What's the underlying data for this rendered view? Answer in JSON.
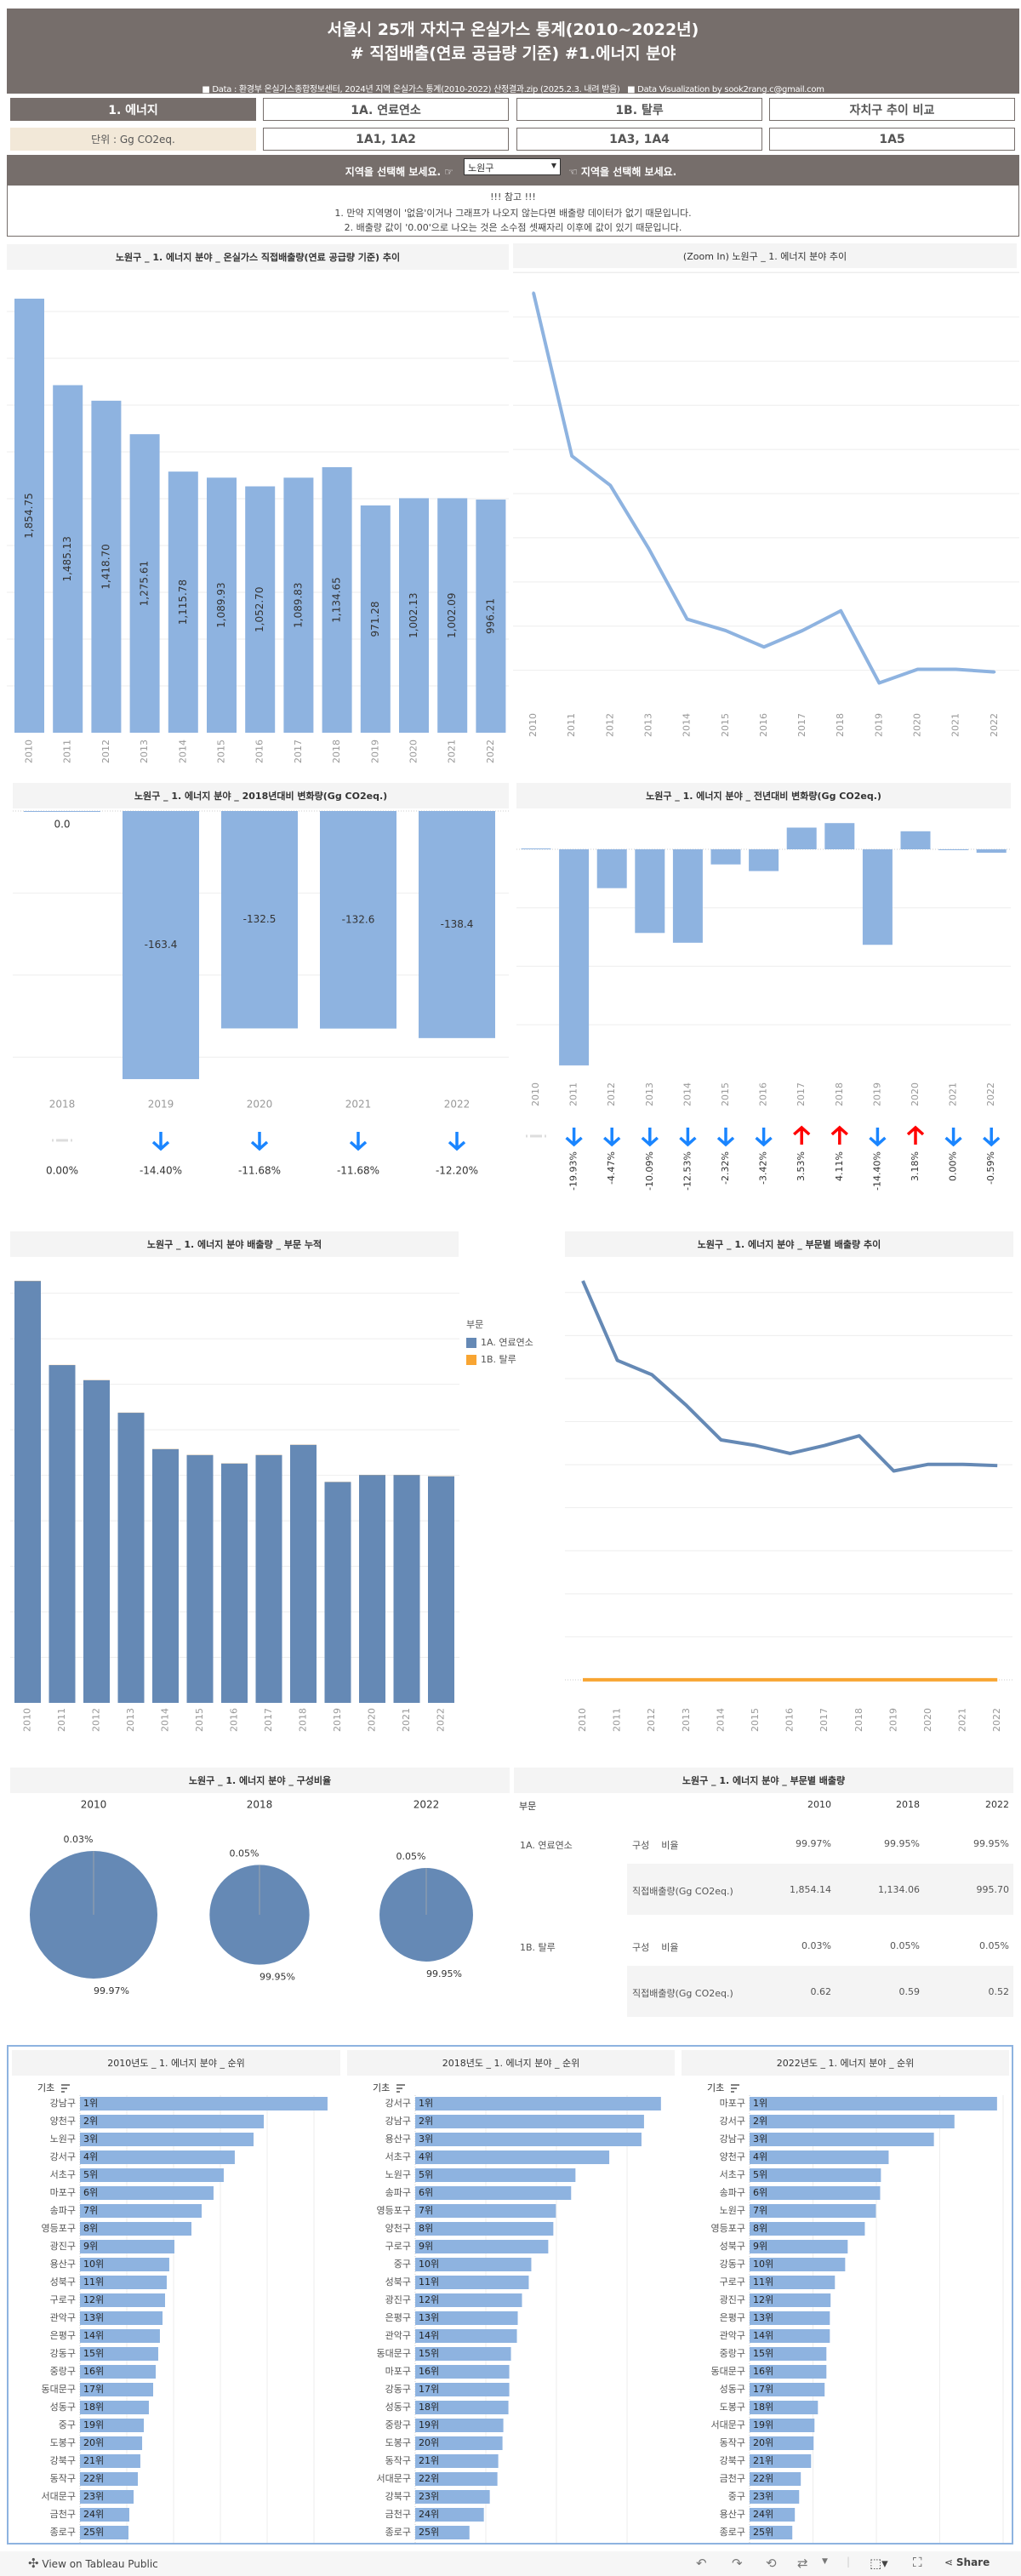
{
  "header": {
    "title_line1": "서울시 25개 자치구 온실가스 통계(2010~2022년)",
    "title_line2": "# 직접배출(연료 공급량 기준)   #1.에너지 분야",
    "source": "■ Data : 환경부 온실가스종합정보센터, 2024년 지역 온실가스 통계(2010-2022) 산정결과.zip   (2025.2.3. 내려 받음)",
    "credit": "■ Data Visualization by sook2rang.c@gmail.com"
  },
  "tabs": [
    "1. 에너지",
    "1A. 연료연소",
    "1B. 탈루",
    "자치구 추이 비교"
  ],
  "subtabs": [
    "단위 : Gg CO2eq.",
    "1A1, 1A2",
    "1A3, 1A4",
    "1A5"
  ],
  "selector": {
    "prompt_left": "지역을 선택해 보세요. ☞",
    "value": "노원구",
    "prompt_right": "☜ 지역을 선택해 보세요."
  },
  "note": {
    "title": "!!! 참고 !!!",
    "lines": [
      "1. 만약 지역명이 '없음'이거나 그래프가 나오지 않는다면 배출량 데이터가 없기 때문입니다.",
      "2. 배출량 값이 '0.00'으로 나오는 것은 소수점 셋째자리 이후에 값이 있기 때문입니다."
    ]
  },
  "colors": {
    "header": "#766e6b",
    "bar_light": "#8eb3e0",
    "series_1A": "#6589b5",
    "series_1B": "#f8a532",
    "arrow_down": "#1a85ff",
    "arrow_up": "#ff0000"
  },
  "footer": {
    "tableau_link": "View on Tableau Public",
    "share": "Share"
  },
  "chart_data": [
    {
      "type": "bar",
      "title": "노원구 _ 1. 에너지 분야 _ 온실가스 직접배출량(연료 공급량 기준) 추이",
      "categories": [
        "2010",
        "2011",
        "2012",
        "2013",
        "2014",
        "2015",
        "2016",
        "2017",
        "2018",
        "2019",
        "2020",
        "2021",
        "2022"
      ],
      "values": [
        1854.75,
        1485.13,
        1418.7,
        1275.61,
        1115.78,
        1089.93,
        1052.7,
        1089.83,
        1134.65,
        971.28,
        1002.13,
        1002.09,
        996.21
      ],
      "labels": [
        "1,854.75",
        "1,485.13",
        "1,418.70",
        "1,275.61",
        "1,115.78",
        "1,089.93",
        "1,052.70",
        "1,089.83",
        "1,134.65",
        "971.28",
        "1,002.13",
        "1,002.09",
        "996.21"
      ],
      "ylim": [
        0,
        2000
      ],
      "grid": true
    },
    {
      "type": "line",
      "title": "(Zoom In) 노원구 _ 1. 에너지 분야 추이",
      "categories": [
        "2010",
        "2011",
        "2012",
        "2013",
        "2014",
        "2015",
        "2016",
        "2017",
        "2018",
        "2019",
        "2020",
        "2021",
        "2022"
      ],
      "values": [
        1854.75,
        1485.13,
        1418.7,
        1275.61,
        1115.78,
        1089.93,
        1052.7,
        1089.83,
        1134.65,
        971.28,
        1002.13,
        1002.09,
        996.21
      ],
      "ylim": [
        930,
        1900
      ],
      "grid": true
    },
    {
      "type": "bar",
      "title": "노원구 _ 1. 에너지 분야 _ 2018년대비 변화량(Gg CO2eq.)",
      "categories": [
        "2018",
        "2019",
        "2020",
        "2021",
        "2022"
      ],
      "values": [
        0.0,
        -163.4,
        -132.5,
        -132.6,
        -138.4
      ],
      "labels": [
        "0.0",
        "-163.4",
        "-132.5",
        "-132.6",
        "-138.4"
      ],
      "pct": [
        "0.00%",
        "-14.40%",
        "-11.68%",
        "-11.68%",
        "-12.20%"
      ],
      "direction": [
        "none",
        "down",
        "down",
        "down",
        "down"
      ],
      "ylim": [
        -165,
        0
      ],
      "grid": true
    },
    {
      "type": "bar",
      "title": "노원구 _ 1. 에너지 분야 _ 전년대비 변화량(Gg CO2eq.)",
      "categories": [
        "2010",
        "2011",
        "2012",
        "2013",
        "2014",
        "2015",
        "2016",
        "2017",
        "2018",
        "2019",
        "2020",
        "2021",
        "2022"
      ],
      "values": [
        0,
        -369.62,
        -66.43,
        -143.09,
        -159.83,
        -25.85,
        -37.23,
        37.13,
        44.82,
        -163.37,
        30.85,
        -0.04,
        -5.88
      ],
      "pct": [
        "",
        "-19.93%",
        "-4.47%",
        "-10.09%",
        "-12.53%",
        "-2.32%",
        "-3.42%",
        "3.53%",
        "4.11%",
        "-14.40%",
        "3.18%",
        "0.00%",
        "-0.59%"
      ],
      "direction": [
        "none",
        "down",
        "down",
        "down",
        "down",
        "down",
        "down",
        "up",
        "up",
        "down",
        "up",
        "down",
        "down"
      ],
      "ylim": [
        -380,
        70
      ],
      "grid": true
    },
    {
      "type": "bar",
      "stacked": true,
      "title": "노원구 _ 1. 에너지 분야 배출량 _ 부문 누적",
      "categories": [
        "2010",
        "2011",
        "2012",
        "2013",
        "2014",
        "2015",
        "2016",
        "2017",
        "2018",
        "2019",
        "2020",
        "2021",
        "2022"
      ],
      "legend_title": "부문",
      "legend": "right",
      "series": [
        {
          "name": "1A. 연료연소",
          "color": "#6589b5",
          "values": [
            1854.14,
            1484.5,
            1418.1,
            1275.0,
            1115.2,
            1089.3,
            1052.1,
            1089.2,
            1134.06,
            970.7,
            1001.6,
            1001.6,
            995.7
          ]
        },
        {
          "name": "1B. 탈루",
          "color": "#f8a532",
          "values": [
            0.62,
            0.6,
            0.6,
            0.6,
            0.6,
            0.6,
            0.6,
            0.6,
            0.59,
            0.55,
            0.53,
            0.52,
            0.52
          ]
        }
      ],
      "ylim": [
        0,
        2000
      ],
      "grid": true
    },
    {
      "type": "line",
      "title": "노원구 _ 1. 에너지 분야 _ 부문별 배출량 추이",
      "categories": [
        "2010",
        "2011",
        "2012",
        "2013",
        "2014",
        "2015",
        "2016",
        "2017",
        "2018",
        "2019",
        "2020",
        "2021",
        "2022"
      ],
      "series": [
        {
          "name": "1A. 연료연소",
          "color": "#6589b5",
          "values": [
            1854.14,
            1484.5,
            1418.1,
            1275.0,
            1115.2,
            1089.3,
            1052.1,
            1089.2,
            1134.06,
            970.7,
            1001.6,
            1001.6,
            995.7
          ]
        },
        {
          "name": "1B. 탈루",
          "color": "#f8a532",
          "values": [
            0.62,
            0.6,
            0.6,
            0.6,
            0.6,
            0.6,
            0.6,
            0.6,
            0.59,
            0.55,
            0.53,
            0.52,
            0.52
          ]
        }
      ],
      "ylim": [
        0,
        1900
      ],
      "grid": true
    },
    {
      "type": "pie",
      "title": "노원구 _ 1. 에너지 분야 _ 구성비율",
      "pies": [
        {
          "year": "2010",
          "total": 1854.75,
          "slices": [
            {
              "name": "1A. 연료연소",
              "value": 99.97,
              "label": "99.97%"
            },
            {
              "name": "1B. 탈루",
              "value": 0.03,
              "label": "0.03%"
            }
          ]
        },
        {
          "year": "2018",
          "total": 1134.65,
          "slices": [
            {
              "name": "1A. 연료연소",
              "value": 99.95,
              "label": "99.95%"
            },
            {
              "name": "1B. 탈루",
              "value": 0.05,
              "label": "0.05%"
            }
          ]
        },
        {
          "year": "2022",
          "total": 996.21,
          "slices": [
            {
              "name": "1A. 연료연소",
              "value": 99.95,
              "label": "99.95%"
            },
            {
              "name": "1B. 탈루",
              "value": 0.05,
              "label": "0.05%"
            }
          ]
        }
      ]
    },
    {
      "type": "table",
      "title": "노원구 _ 1. 에너지 분야 _ 부문별 배출량",
      "header": [
        "부문",
        "",
        "2010",
        "2018",
        "2022"
      ],
      "rows": [
        {
          "sector": "1A. 연료연소",
          "measure": "구성    비율",
          "values": [
            "99.97%",
            "99.95%",
            "99.95%"
          ]
        },
        {
          "sector": "",
          "measure": "직접배출량(Gg CO2eq.)",
          "values": [
            "1,854.14",
            "1,134.06",
            "995.70"
          ]
        },
        {
          "sector": "1B. 탈루",
          "measure": "구성    비율",
          "values": [
            "0.03%",
            "0.05%",
            "0.05%"
          ]
        },
        {
          "sector": "",
          "measure": "직접배출량(Gg CO2eq.)",
          "values": [
            "0.62",
            "0.59",
            "0.52"
          ]
        }
      ]
    },
    {
      "type": "bar",
      "orientation": "horizontal",
      "title": "2010년도 _ 1. 에너지 분야 _ 순위",
      "sort_label": "기초",
      "categories": [
        "강남구",
        "양천구",
        "노원구",
        "강서구",
        "서초구",
        "마포구",
        "송파구",
        "영등포구",
        "광진구",
        "용산구",
        "성북구",
        "구로구",
        "관악구",
        "은평구",
        "강동구",
        "중랑구",
        "동대문구",
        "성동구",
        "중구",
        "도봉구",
        "강북구",
        "동작구",
        "서대문구",
        "금천구",
        "종로구"
      ],
      "values": [
        2645,
        1964,
        1854.75,
        1654,
        1536,
        1427,
        1300,
        1191,
        1009,
        954,
        927,
        909,
        882,
        854,
        836,
        809,
        782,
        736,
        682,
        664,
        645,
        618,
        573,
        527,
        518
      ],
      "labels": [
        "1위",
        "2위",
        "3위",
        "4위",
        "5위",
        "6위",
        "7위",
        "8위",
        "9위",
        "10위",
        "11위",
        "12위",
        "13위",
        "14위",
        "15위",
        "16위",
        "17위",
        "18위",
        "19위",
        "20위",
        "21위",
        "22위",
        "23위",
        "24위",
        "25위"
      ],
      "grid": true
    },
    {
      "type": "bar",
      "orientation": "horizontal",
      "title": "2018년도 _ 1. 에너지 분야 _ 순위",
      "sort_label": "기초",
      "categories": [
        "강서구",
        "강남구",
        "용산구",
        "서초구",
        "노원구",
        "송파구",
        "영등포구",
        "양천구",
        "구로구",
        "중구",
        "성북구",
        "광진구",
        "은평구",
        "관악구",
        "동대문구",
        "마포구",
        "강동구",
        "성동구",
        "중랑구",
        "도봉구",
        "동작구",
        "서대문구",
        "강북구",
        "금천구",
        "종로구"
      ],
      "values": [
        1740,
        1620,
        1602,
        1374,
        1134.65,
        1104,
        996,
        978,
        942,
        822,
        804,
        756,
        726,
        720,
        678,
        666,
        666,
        660,
        624,
        618,
        588,
        582,
        528,
        486,
        384
      ],
      "labels": [
        "1위",
        "2위",
        "3위",
        "4위",
        "5위",
        "6위",
        "7위",
        "8위",
        "9위",
        "10위",
        "11위",
        "12위",
        "13위",
        "14위",
        "15위",
        "16위",
        "17위",
        "18위",
        "19위",
        "20위",
        "21위",
        "22위",
        "23위",
        "24위",
        "25위"
      ],
      "grid": true
    },
    {
      "type": "bar",
      "orientation": "horizontal",
      "title": "2022년도 _ 1. 에너지 분야 _ 순위",
      "sort_label": "기초",
      "categories": [
        "마포구",
        "강서구",
        "강남구",
        "양천구",
        "서초구",
        "송파구",
        "노원구",
        "영등포구",
        "성북구",
        "강동구",
        "구로구",
        "광진구",
        "은평구",
        "관악구",
        "중랑구",
        "동대문구",
        "성동구",
        "도봉구",
        "서대문구",
        "동작구",
        "강북구",
        "금천구",
        "중구",
        "용산구",
        "종로구"
      ],
      "values": [
        1952,
        1616,
        1454,
        1097,
        1036,
        1030,
        996.21,
        909,
        774,
        754,
        673,
        639,
        633,
        633,
        606,
        606,
        592,
        539,
        512,
        505,
        485,
        404,
        391,
        357,
        337
      ],
      "labels": [
        "1위",
        "2위",
        "3위",
        "4위",
        "5위",
        "6위",
        "7위",
        "8위",
        "9위",
        "10위",
        "11위",
        "12위",
        "13위",
        "14위",
        "15위",
        "16위",
        "17위",
        "18위",
        "19위",
        "20위",
        "21위",
        "22위",
        "23위",
        "24위",
        "25위"
      ],
      "grid": true
    }
  ]
}
